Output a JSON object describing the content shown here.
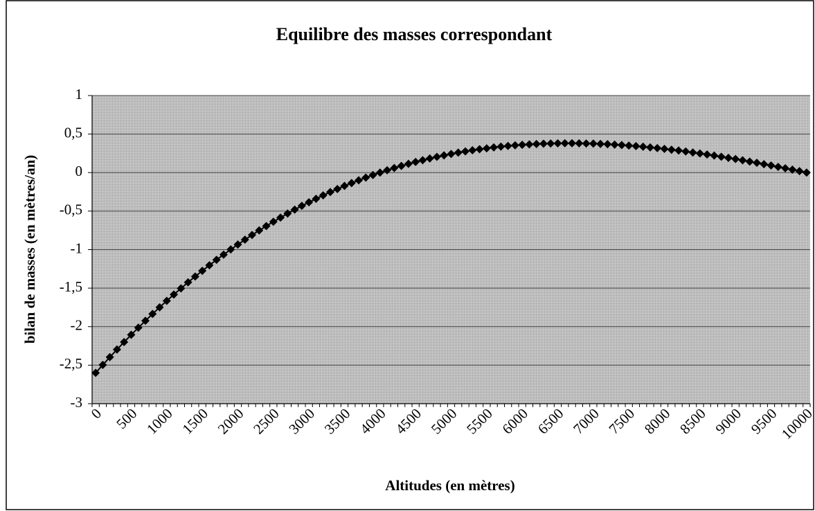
{
  "chart_data": {
    "type": "line",
    "title": "Equilibre des masses correspondant",
    "x_label": "Altitudes (en mètres)",
    "y_label": "bilan de masses (en mètres/an)",
    "categories": [
      0,
      null,
      null,
      null,
      null,
      500,
      null,
      null,
      null,
      null,
      1000,
      null,
      null,
      null,
      null,
      1500,
      null,
      null,
      null,
      null,
      2000,
      null,
      null,
      null,
      null,
      2500,
      null,
      null,
      null,
      null,
      3000,
      null,
      null,
      null,
      null,
      3500,
      null,
      null,
      null,
      null,
      4000,
      null,
      null,
      null,
      null,
      4500,
      null,
      null,
      null,
      null,
      5000,
      null,
      null,
      null,
      null,
      5500,
      null,
      null,
      null,
      null,
      6000,
      null,
      null,
      null,
      null,
      6500,
      null,
      null,
      null,
      null,
      7000,
      null,
      null,
      null,
      null,
      7500,
      null,
      null,
      null,
      null,
      8000,
      null,
      null,
      null,
      null,
      8500,
      null,
      null,
      null,
      null,
      9000,
      null,
      null,
      null,
      null,
      9500,
      null,
      null,
      null,
      null,
      10000
    ],
    "series": [
      {
        "name": "bilan de masses",
        "color": "#000000",
        "marker": "diamond",
        "values": [
          -2.6,
          -2.497,
          -2.396,
          -2.297,
          -2.2,
          -2.106,
          -2.014,
          -1.924,
          -1.835,
          -1.749,
          -1.665,
          -1.583,
          -1.503,
          -1.425,
          -1.349,
          -1.275,
          -1.203,
          -1.133,
          -1.065,
          -0.998,
          -0.934,
          -0.871,
          -0.81,
          -0.751,
          -0.694,
          -0.638,
          -0.584,
          -0.532,
          -0.481,
          -0.432,
          -0.385,
          -0.34,
          -0.296,
          -0.253,
          -0.213,
          -0.173,
          -0.136,
          -0.1,
          -0.065,
          -0.032,
          0,
          0.03,
          0.059,
          0.087,
          0.113,
          0.138,
          0.161,
          0.183,
          0.204,
          0.224,
          0.242,
          0.259,
          0.275,
          0.29,
          0.303,
          0.315,
          0.327,
          0.337,
          0.346,
          0.354,
          0.361,
          0.366,
          0.371,
          0.375,
          0.378,
          0.38,
          0.381,
          0.381,
          0.38,
          0.378,
          0.376,
          0.372,
          0.368,
          0.363,
          0.357,
          0.351,
          0.344,
          0.336,
          0.327,
          0.318,
          0.308,
          0.297,
          0.286,
          0.274,
          0.261,
          0.248,
          0.235,
          0.221,
          0.206,
          0.191,
          0.176,
          0.16,
          0.143,
          0.127,
          0.109,
          0.092,
          0.074,
          0.056,
          0.038,
          0.019,
          0
        ]
      }
    ],
    "ylim": [
      -3,
      1
    ],
    "yticks": [
      -3,
      {
        "value": -2.5,
        "label": "-2,5"
      },
      -2,
      {
        "value": -1.5,
        "label": "-1,5"
      },
      -1,
      {
        "value": -0.5,
        "label": "-0,5"
      },
      0,
      {
        "value": 0.5,
        "label": "0,5"
      },
      1
    ],
    "grid": true,
    "plot_background": "#c4c4c4"
  }
}
